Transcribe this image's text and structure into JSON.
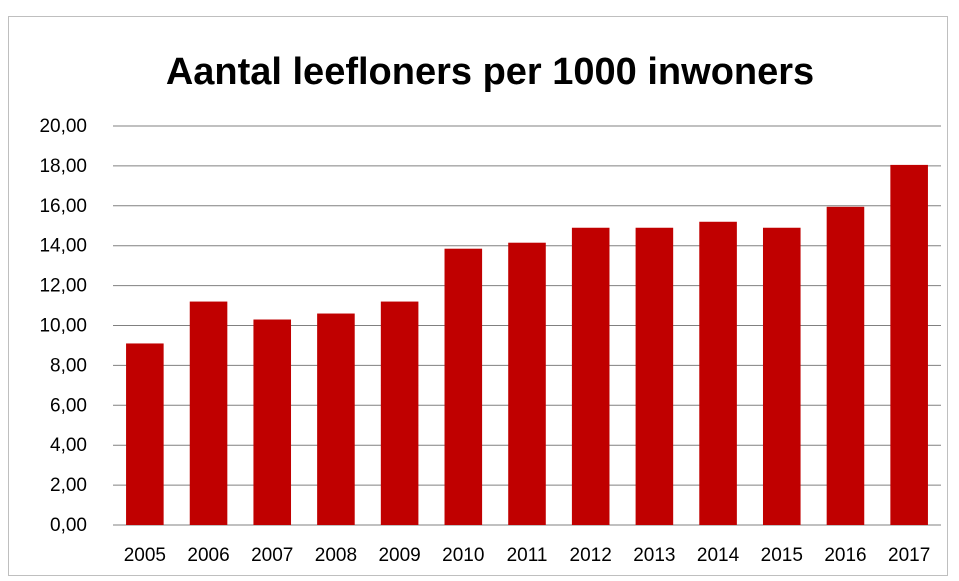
{
  "chart_data": {
    "type": "bar",
    "title": "Aantal leefloners per 1000 inwoners",
    "categories": [
      "2005",
      "2006",
      "2007",
      "2008",
      "2009",
      "2010",
      "2011",
      "2012",
      "2013",
      "2014",
      "2015",
      "2016",
      "2017"
    ],
    "values": [
      9.1,
      11.2,
      10.3,
      10.6,
      11.2,
      13.85,
      14.15,
      14.9,
      14.9,
      15.2,
      14.9,
      15.95,
      18.05
    ],
    "ylim": [
      0,
      20
    ],
    "yticks": [
      "0,00",
      "2,00",
      "4,00",
      "6,00",
      "8,00",
      "10,00",
      "12,00",
      "14,00",
      "16,00",
      "18,00",
      "20,00"
    ],
    "grid": true,
    "legend": "none",
    "bar_color": "#c00000",
    "xlabel": "",
    "ylabel": ""
  }
}
